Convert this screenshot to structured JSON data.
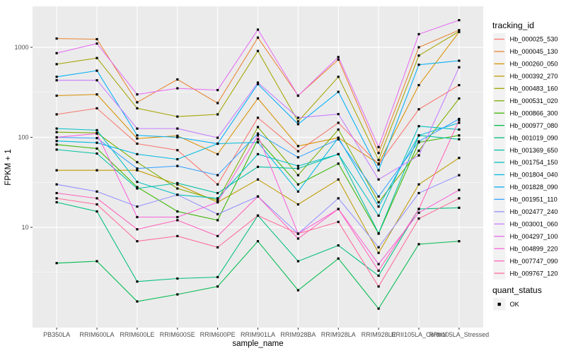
{
  "figure": {
    "background": "#ffffff",
    "panel_background": "#ebebeb",
    "gridline_color": "#ffffff",
    "tick_mark_color": "#333333",
    "tick_text_color": "#4d4d4d",
    "point_color": "#000000",
    "legend_key_background": "#f2f2f2"
  },
  "legend": {
    "tracking_title": "tracking_id",
    "quant_title": "quant_status",
    "quant_items": [
      {
        "label": "OK",
        "symbol": "black-square-point"
      }
    ]
  },
  "chart_data": {
    "type": "line",
    "title": "",
    "xlabel": "sample_name",
    "ylabel": "FPKM + 1",
    "y_scale": "log10",
    "ylim": [
      0.75,
      2800
    ],
    "y_tick_values": [
      10,
      100,
      1000
    ],
    "y_tick_labels": [
      "10",
      "100",
      "1000"
    ],
    "grid": true,
    "legend_position": "right",
    "marker": "small-black-square",
    "categories": [
      "PB350LA",
      "RRIM600LA",
      "RRIM600LE",
      "RRIM600SE",
      "RRIM600PE",
      "RRIM901LA",
      "RRIM928BA",
      "RRIM928LA",
      "RRIM928LE",
      "RRII105LA_Control",
      "RRII105LA_Stressed"
    ],
    "series": [
      {
        "name": "Hb_000025_530",
        "color": "#F8766D",
        "values": [
          180,
          210,
          85,
          72,
          30,
          165,
          70,
          145,
          50,
          205,
          380
        ]
      },
      {
        "name": "Hb_000045_130",
        "color": "#EA8331",
        "values": [
          1250,
          1230,
          245,
          440,
          240,
          1280,
          290,
          730,
          67,
          1000,
          1550
        ]
      },
      {
        "name": "Hb_000260_050",
        "color": "#D89000",
        "values": [
          290,
          300,
          97,
          104,
          65,
          270,
          80,
          99,
          51,
          380,
          1480
        ]
      },
      {
        "name": "Hb_000392_270",
        "color": "#C09B00",
        "values": [
          43,
          43,
          43,
          30,
          19,
          34,
          18,
          34,
          5.2,
          30,
          59
        ]
      },
      {
        "name": "Hb_000483_160",
        "color": "#A3A500",
        "values": [
          650,
          760,
          210,
          170,
          180,
          910,
          150,
          470,
          56,
          810,
          1500
        ]
      },
      {
        "name": "Hb_000531_020",
        "color": "#7CAE00",
        "values": [
          114,
          112,
          53,
          27,
          20,
          130,
          38,
          122,
          19,
          71,
          270
        ]
      },
      {
        "name": "Hb_000866_300",
        "color": "#39B600",
        "values": [
          83,
          75,
          28,
          15,
          12,
          95,
          30,
          51,
          8.5,
          88,
          105
        ]
      },
      {
        "name": "Hb_000977_080",
        "color": "#00BB4E",
        "values": [
          4.0,
          4.2,
          1.5,
          1.8,
          2.2,
          7.0,
          2.0,
          4.5,
          1.25,
          6.5,
          7.0
        ]
      },
      {
        "name": "Hb_001019_090",
        "color": "#00BF7D",
        "values": [
          19,
          15,
          2.5,
          2.7,
          2.8,
          13.5,
          4.2,
          6.3,
          2.9,
          16,
          16.5
        ]
      },
      {
        "name": "Hb_001369_650",
        "color": "#00C1A3",
        "values": [
          73,
          66,
          27,
          31,
          24,
          47,
          45,
          65,
          8.6,
          105,
          95
        ]
      },
      {
        "name": "Hb_001754_150",
        "color": "#00BFC4",
        "values": [
          125,
          120,
          32,
          23,
          21,
          65,
          48,
          65,
          13.5,
          133,
          122
        ]
      },
      {
        "name": "Hb_001804_040",
        "color": "#00BAE0",
        "values": [
          91,
          87,
          65,
          57,
          85,
          88,
          25,
          99,
          17,
          105,
          145
        ]
      },
      {
        "name": "Hb_001828_090",
        "color": "#00B0F6",
        "values": [
          470,
          550,
          105,
          100,
          85,
          390,
          140,
          320,
          43,
          640,
          710
        ]
      },
      {
        "name": "Hb_001951_110",
        "color": "#35A2FF",
        "values": [
          100,
          98,
          45,
          48,
          38,
          110,
          60,
          95,
          22,
          90,
          160
        ]
      },
      {
        "name": "Hb_002477_240",
        "color": "#9590FF",
        "values": [
          30,
          25,
          17,
          23,
          14,
          22,
          8.5,
          21,
          6.0,
          24,
          38
        ]
      },
      {
        "name": "Hb_003001_060",
        "color": "#C77CFF",
        "values": [
          430,
          430,
          125,
          125,
          99,
          405,
          165,
          181,
          34,
          63,
          600
        ]
      },
      {
        "name": "Hb_004297_100",
        "color": "#E76BF3",
        "values": [
          861,
          1100,
          300,
          350,
          335,
          1570,
          290,
          780,
          78,
          1400,
          2000
        ]
      },
      {
        "name": "Hb_004899_220",
        "color": "#FA62DB",
        "values": [
          100,
          110,
          13,
          13,
          19,
          105,
          8.5,
          16,
          3.9,
          14.5,
          26
        ]
      },
      {
        "name": "Hb_007747_090",
        "color": "#FF62BC",
        "values": [
          24,
          21,
          9.5,
          12,
          8,
          22,
          7.5,
          16,
          3.3,
          16,
          155
        ]
      },
      {
        "name": "Hb_009767_120",
        "color": "#FF6A98",
        "values": [
          21,
          18,
          7.0,
          8,
          6,
          13.5,
          8.5,
          11.5,
          2.2,
          12.5,
          21
        ]
      }
    ]
  }
}
